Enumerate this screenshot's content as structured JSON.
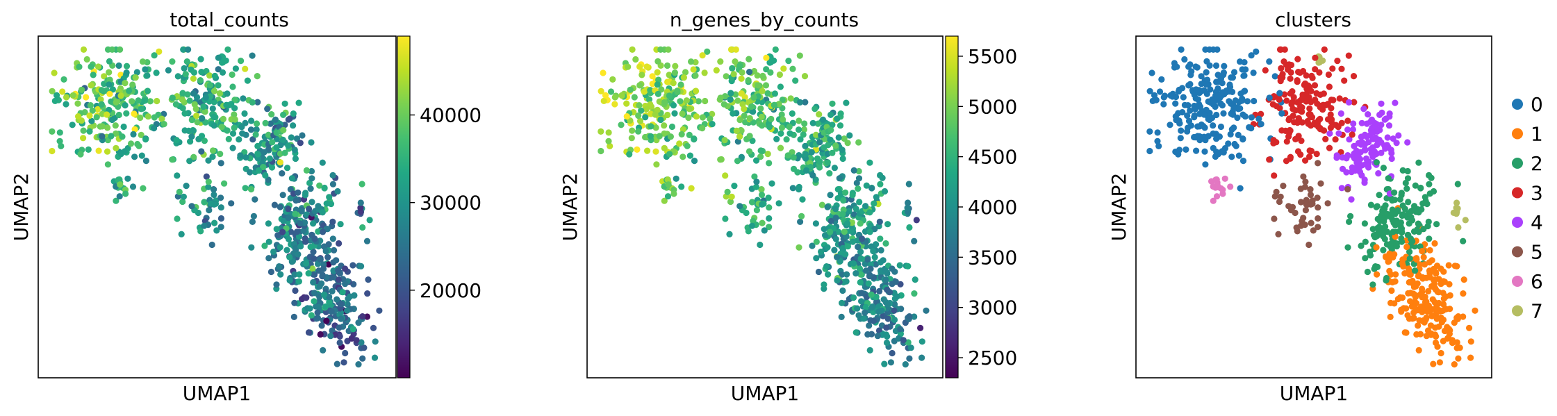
{
  "chart_data": [
    {
      "type": "scatter",
      "title": "total_counts",
      "xlabel": "UMAP1",
      "ylabel": "UMAP2",
      "color_by": "continuous",
      "colormap": "viridis",
      "colorbar": {
        "range": [
          10000,
          49000
        ],
        "ticks": [
          20000,
          30000,
          40000
        ],
        "tick_labels": [
          "20000",
          "30000",
          "40000"
        ]
      },
      "value_range": [
        10000,
        49000
      ]
    },
    {
      "type": "scatter",
      "title": "n_genes_by_counts",
      "xlabel": "UMAP1",
      "ylabel": "UMAP2",
      "color_by": "continuous",
      "colormap": "viridis",
      "colorbar": {
        "range": [
          2300,
          5700
        ],
        "ticks": [
          2500,
          3000,
          3500,
          4000,
          4500,
          5000,
          5500
        ],
        "tick_labels": [
          "2500",
          "3000",
          "3500",
          "4000",
          "4500",
          "5000",
          "5500"
        ]
      },
      "value_range": [
        2300,
        5700
      ]
    },
    {
      "type": "scatter",
      "title": "clusters",
      "xlabel": "UMAP1",
      "ylabel": "UMAP2",
      "color_by": "categorical",
      "legend_position": "right",
      "categories": [
        {
          "name": "0",
          "color": "#1f77b4"
        },
        {
          "name": "1",
          "color": "#ff7f0e"
        },
        {
          "name": "2",
          "color": "#279e68"
        },
        {
          "name": "3",
          "color": "#d62728"
        },
        {
          "name": "4",
          "color": "#aa40fc"
        },
        {
          "name": "5",
          "color": "#8c564b"
        },
        {
          "name": "6",
          "color": "#e377c2"
        },
        {
          "name": "7",
          "color": "#b5bd61"
        }
      ]
    }
  ]
}
